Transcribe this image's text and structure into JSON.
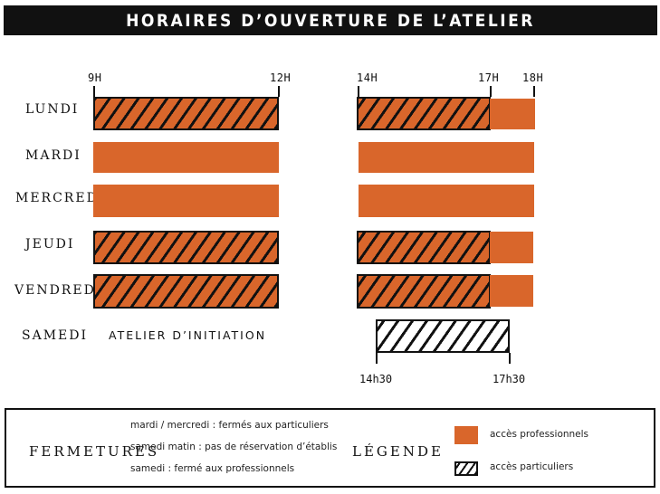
{
  "title": "HORAIRES D’OUVERTURE DE L’ATELIER",
  "hours": {
    "h9": "9H",
    "h12": "12H",
    "h14": "14H",
    "h17": "17H",
    "h18": "18H"
  },
  "days": [
    "LUNDI",
    "MARDI",
    "MERCREDI",
    "JEUDI",
    "VENDREDI",
    "SAMEDI"
  ],
  "saturday": {
    "morning_label": "ATELIER D’INITIATION",
    "start": "14h30",
    "end": "17h30"
  },
  "fermetures": {
    "heading": "FERMETURES",
    "lines": [
      "mardi / mercredi : fermés aux particuliers",
      "samedi matin : pas de réservation d’établis",
      "samedi : fermé aux professionnels"
    ]
  },
  "legende": {
    "heading": "LÉGENDE",
    "professional": "accès professionnels",
    "private": "accès particuliers"
  },
  "colors": {
    "professional": "#d9662b",
    "private_hatch": "#111111",
    "background": "#ffffff"
  }
}
